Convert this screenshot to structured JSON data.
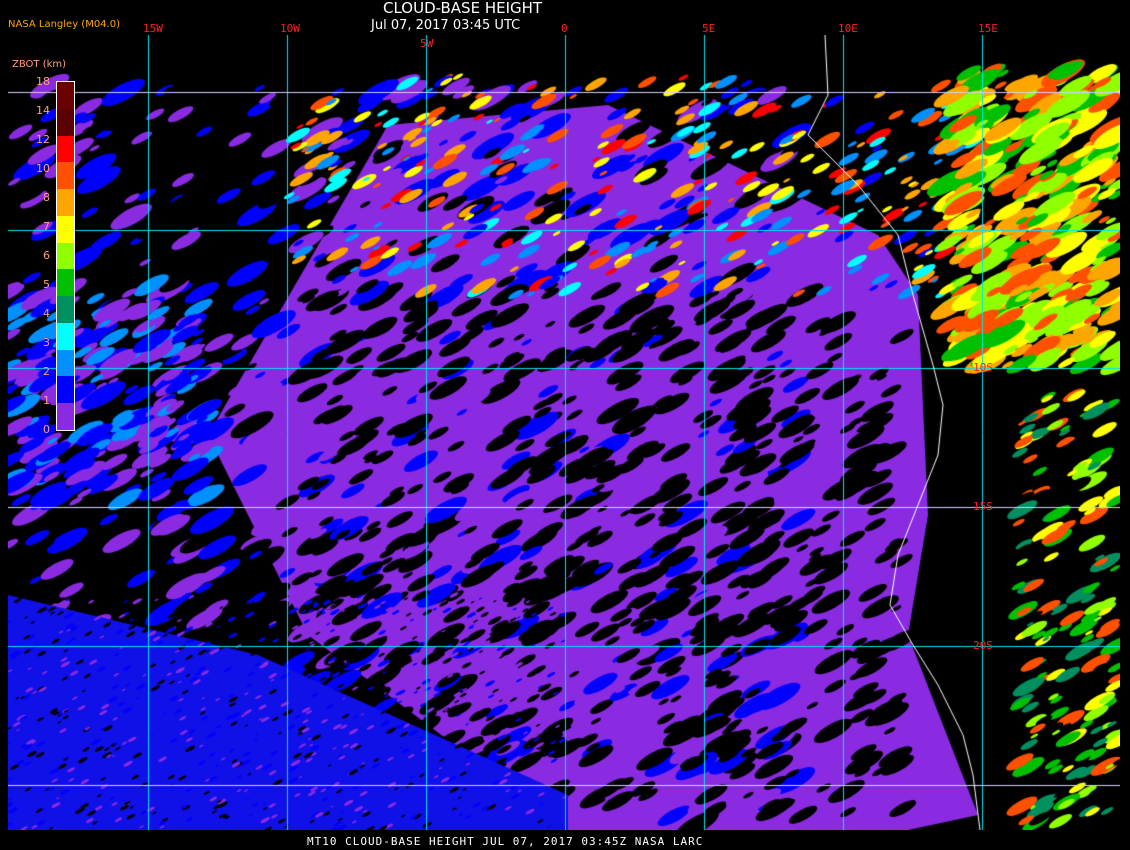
{
  "header": {
    "title": "CLOUD-BASE HEIGHT",
    "subtitle": "Jul 07, 2017 03:45 UTC",
    "agency": "NASA Langley (M04.0)"
  },
  "footer": {
    "text": "MT10  CLOUD-BASE HEIGHT   JUL 07, 2017 03:45Z   NASA LARC"
  },
  "map": {
    "longitude_labels": [
      "15W",
      "10W",
      "5W",
      "0",
      "5E",
      "10E",
      "15E"
    ],
    "latitude_labels": [
      "10S",
      "15S",
      "20S"
    ],
    "grid_color": "#00e5ee",
    "coastline_color": "#ffffff"
  },
  "legend": {
    "title": "ZBOT (km)",
    "ticks": [
      "18",
      "14",
      "12",
      "10",
      "8",
      "7",
      "6",
      "5",
      "4",
      "3",
      "2",
      "1",
      "0"
    ],
    "colors": [
      "#6a0000",
      "#5a0000",
      "#ff0000",
      "#ff5000",
      "#ffa500",
      "#ffff00",
      "#90ff00",
      "#00c000",
      "#009060",
      "#00ffff",
      "#0090ff",
      "#0000ff",
      "#8a2be2"
    ]
  }
}
